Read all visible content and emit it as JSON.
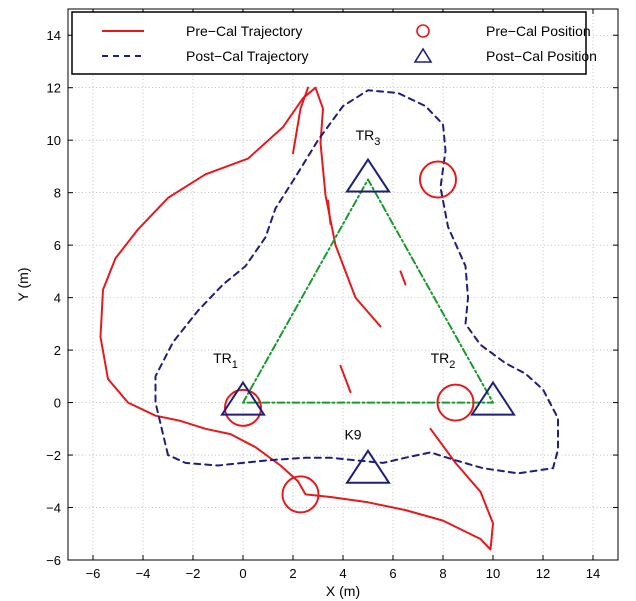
{
  "chart_data": {
    "type": "line",
    "xlabel": "X (m)",
    "ylabel": "Y (m)",
    "xlim": [
      -7,
      15
    ],
    "ylim": [
      -6,
      15
    ],
    "xticks": [
      -6,
      -4,
      -2,
      0,
      2,
      4,
      6,
      8,
      10,
      12,
      14
    ],
    "yticks": [
      -6,
      -4,
      -2,
      0,
      2,
      4,
      6,
      8,
      10,
      12,
      14
    ],
    "grid": true,
    "legend": {
      "placement": "top",
      "entries": [
        {
          "label": "Pre−Cal Trajectory",
          "symbol": "line-solid",
          "color": "#e41a1c"
        },
        {
          "label": "Post−Cal Trajectory",
          "symbol": "line-dashed",
          "color": "#1f1f7a"
        },
        {
          "label": "Pre−Cal Position",
          "symbol": "circle",
          "color": "#e41a1c"
        },
        {
          "label": "Post−Cal Position",
          "symbol": "triangle",
          "color": "#1f1f7a"
        }
      ]
    },
    "series": [
      {
        "name": "Pre−Cal Trajectory",
        "style": "solid",
        "color": "#e41a1c",
        "segments": [
          [
            [
              -1.5,
              8.7
            ],
            [
              -3.0,
              7.8
            ],
            [
              -4.2,
              6.6
            ],
            [
              -5.1,
              5.5
            ],
            [
              -5.6,
              4.3
            ],
            [
              -5.7,
              2.5
            ],
            [
              -5.4,
              0.9
            ],
            [
              -4.6,
              0.0
            ],
            [
              -3.5,
              -0.5
            ],
            [
              -2.5,
              -0.7
            ],
            [
              -1.5,
              -1.0
            ],
            [
              -0.5,
              -1.2
            ],
            [
              0.5,
              -1.7
            ],
            [
              1.5,
              -2.4
            ],
            [
              2.2,
              -3.0
            ],
            [
              2.5,
              -3.5
            ],
            [
              3.5,
              -3.6
            ],
            [
              5.0,
              -3.8
            ],
            [
              6.5,
              -4.1
            ],
            [
              8.0,
              -4.5
            ],
            [
              9.5,
              -5.2
            ],
            [
              9.9,
              -5.6
            ],
            [
              10.0,
              -4.6
            ],
            [
              9.5,
              -3.4
            ],
            [
              8.5,
              -2.3
            ],
            [
              7.5,
              -1.0
            ]
          ],
          [
            [
              -1.5,
              8.7
            ],
            [
              0.2,
              9.3
            ],
            [
              1.6,
              10.5
            ],
            [
              2.4,
              11.6
            ],
            [
              2.9,
              12.0
            ],
            [
              3.2,
              11.2
            ],
            [
              3.1,
              9.9
            ],
            [
              3.3,
              7.9
            ],
            [
              3.7,
              6.0
            ],
            [
              4.1,
              5.0
            ],
            [
              4.5,
              4.0
            ],
            [
              5.5,
              2.9
            ]
          ],
          [
            [
              2.0,
              9.5
            ],
            [
              2.3,
              11.2
            ],
            [
              2.6,
              12.0
            ]
          ],
          [
            [
              3.4,
              7.7
            ],
            [
              3.5,
              6.8
            ]
          ],
          [
            [
              6.3,
              5.0
            ],
            [
              6.5,
              4.5
            ]
          ],
          [
            [
              3.9,
              1.4
            ],
            [
              4.3,
              0.4
            ]
          ]
        ]
      },
      {
        "name": "Post−Cal Trajectory",
        "style": "dashed",
        "color": "#1f1f7a",
        "segments": [
          [
            [
              -3.0,
              -2.0
            ],
            [
              -3.3,
              -0.8
            ],
            [
              -3.5,
              0.0
            ],
            [
              -3.5,
              1.0
            ],
            [
              -2.8,
              2.3
            ],
            [
              -1.8,
              3.5
            ],
            [
              -0.8,
              4.5
            ],
            [
              0.1,
              5.2
            ],
            [
              0.9,
              6.3
            ],
            [
              1.3,
              7.4
            ],
            [
              2.1,
              8.6
            ],
            [
              3.0,
              10.0
            ],
            [
              4.0,
              11.3
            ],
            [
              5.0,
              11.9
            ],
            [
              6.2,
              11.8
            ],
            [
              7.3,
              11.3
            ],
            [
              8.0,
              10.6
            ],
            [
              8.1,
              9.6
            ],
            [
              7.9,
              8.2
            ],
            [
              8.2,
              6.7
            ],
            [
              8.9,
              5.2
            ],
            [
              9.0,
              4.0
            ],
            [
              8.9,
              3.0
            ],
            [
              9.5,
              2.2
            ],
            [
              10.5,
              1.5
            ],
            [
              11.3,
              1.1
            ],
            [
              12.0,
              0.5
            ],
            [
              12.6,
              -0.6
            ],
            [
              12.6,
              -1.8
            ],
            [
              12.4,
              -2.5
            ],
            [
              11.0,
              -2.7
            ],
            [
              9.6,
              -2.5
            ],
            [
              8.5,
              -2.2
            ],
            [
              7.5,
              -1.9
            ],
            [
              6.5,
              -2.1
            ],
            [
              5.6,
              -2.3
            ],
            [
              4.5,
              -2.2
            ],
            [
              3.5,
              -2.1
            ],
            [
              2.5,
              -2.1
            ],
            [
              1.0,
              -2.2
            ],
            [
              0.0,
              -2.3
            ],
            [
              -1.0,
              -2.4
            ],
            [
              -2.3,
              -2.3
            ],
            [
              -3.0,
              -2.0
            ]
          ]
        ]
      },
      {
        "name": "",
        "style": "dashdot",
        "color": "#1a9a30",
        "segments": [
          [
            [
              0,
              0
            ],
            [
              5,
              8.5
            ],
            [
              10,
              0
            ],
            [
              0,
              0
            ]
          ]
        ]
      }
    ],
    "pre_cal_positions": [
      {
        "x": 0.0,
        "y": -0.2
      },
      {
        "x": 8.5,
        "y": 0.0
      },
      {
        "x": 7.8,
        "y": 8.5
      },
      {
        "x": 2.3,
        "y": -3.5
      }
    ],
    "post_cal_positions": [
      {
        "x": 0.0,
        "y": 0.0
      },
      {
        "x": 10.0,
        "y": 0.0
      },
      {
        "x": 5.0,
        "y": 8.5
      },
      {
        "x": 5.0,
        "y": -2.6
      }
    ],
    "annotations": [
      {
        "text": "TR",
        "sub": "1",
        "x": -0.7,
        "y": 1.5
      },
      {
        "text": "TR",
        "sub": "2",
        "x": 8.0,
        "y": 1.5
      },
      {
        "text": "TR",
        "sub": "3",
        "x": 5.0,
        "y": 10.0
      },
      {
        "text": "K9",
        "sub": "",
        "x": 4.4,
        "y": -1.4
      }
    ]
  }
}
